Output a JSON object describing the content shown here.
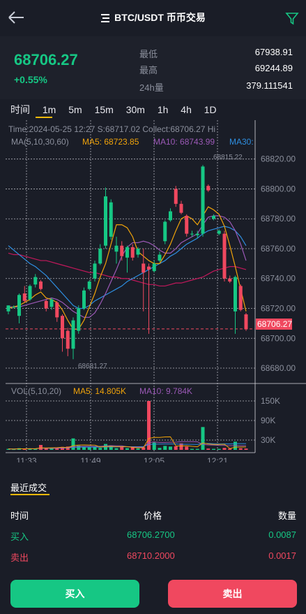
{
  "header": {
    "title": "BTC/USDT 币币交易",
    "back_icon": "arrow-left-icon",
    "menu_icon": "menu-icon",
    "filter_icon": "filter-icon"
  },
  "ticker": {
    "last": "68706.27",
    "change": "+0.55%",
    "low_label": "最低",
    "low": "67938.91",
    "high_label": "最高",
    "high": "69244.89",
    "vol_label": "24h量",
    "vol": "379.111541"
  },
  "intervals": [
    "时间",
    "1m",
    "5m",
    "15m",
    "30m",
    "1h",
    "4h",
    "1D"
  ],
  "chart_info": {
    "time_line": "Time:2024-05-25 12:27   S:68717.02   Collect:68706.27   Hi",
    "ma_label": "MA(5,10,30,60)",
    "ma5": "MA5: 68723.85",
    "ma10": "MA10: 68743.99",
    "ma30": "MA30:",
    "hi_marker": "68815.22",
    "lo_marker": "68681.27",
    "current_tag": "68706.27",
    "vol_label": "VOL(5,10,20)",
    "vol_ma5": "MA5: 14.805K",
    "vol_ma10": "MA10: 9.784K",
    "y_ticks": [
      "68820.00",
      "68800.00",
      "68780.00",
      "68760.00",
      "68740.00",
      "68720.00",
      "68700.00",
      "68680.00"
    ],
    "vol_ticks": [
      "150K",
      "90K",
      "30K"
    ],
    "x_ticks": [
      "11:33",
      "11:49",
      "12:05",
      "12:21"
    ]
  },
  "chart_data": {
    "type": "candlestick",
    "price_range": [
      68673,
      68825
    ],
    "volume_ticks": [
      150000,
      90000,
      30000
    ],
    "candles": [
      {
        "o": 68718,
        "c": 68722,
        "h": 68722,
        "l": 68716,
        "v": 3000
      },
      {
        "o": 68721,
        "c": 68721,
        "h": 68722,
        "l": 68720,
        "v": 2000
      },
      {
        "o": 68715,
        "c": 68729,
        "h": 68730,
        "l": 68710,
        "v": 5000
      },
      {
        "o": 68730,
        "c": 68725,
        "h": 68735,
        "l": 68724,
        "v": 3000
      },
      {
        "o": 68726,
        "c": 68735,
        "h": 68736,
        "l": 68725,
        "v": 4000
      },
      {
        "o": 68736,
        "c": 68741,
        "h": 68743,
        "l": 68734,
        "v": 3000
      },
      {
        "o": 68738,
        "c": 68733,
        "h": 68739,
        "l": 68732,
        "v": 15000
      },
      {
        "o": 68725,
        "c": 68720,
        "h": 68726,
        "l": 68718,
        "v": 5000
      },
      {
        "o": 68721,
        "c": 68726,
        "h": 68727,
        "l": 68719,
        "v": 4000
      },
      {
        "o": 68724,
        "c": 68714,
        "h": 68725,
        "l": 68711,
        "v": 6000
      },
      {
        "o": 68715,
        "c": 68700,
        "h": 68716,
        "l": 68691,
        "v": 9000
      },
      {
        "o": 68705,
        "c": 68693,
        "h": 68707,
        "l": 68688,
        "v": 10000
      },
      {
        "o": 68693,
        "c": 68712,
        "h": 68714,
        "l": 68686,
        "v": 35000
      },
      {
        "o": 68705,
        "c": 68720,
        "h": 68722,
        "l": 68703,
        "v": 13000
      },
      {
        "o": 68720,
        "c": 68732,
        "h": 68734,
        "l": 68719,
        "v": 8000
      },
      {
        "o": 68733,
        "c": 68738,
        "h": 68739,
        "l": 68732,
        "v": 8000
      },
      {
        "o": 68740,
        "c": 68750,
        "h": 68752,
        "l": 68738,
        "v": 9000
      },
      {
        "o": 68750,
        "c": 68760,
        "h": 68763,
        "l": 68749,
        "v": 6000
      },
      {
        "o": 68762,
        "c": 68795,
        "h": 68801,
        "l": 68760,
        "v": 18000
      },
      {
        "o": 68768,
        "c": 68791,
        "h": 68793,
        "l": 68766,
        "v": 12000
      },
      {
        "o": 68758,
        "c": 68762,
        "h": 68768,
        "l": 68750,
        "v": 5000
      },
      {
        "o": 68762,
        "c": 68755,
        "h": 68765,
        "l": 68752,
        "v": 9000
      },
      {
        "o": 68754,
        "c": 68761,
        "h": 68762,
        "l": 68744,
        "v": 5000
      },
      {
        "o": 68761,
        "c": 68754,
        "h": 68763,
        "l": 68752,
        "v": 8000
      },
      {
        "o": 68756,
        "c": 68760,
        "h": 68761,
        "l": 68754,
        "v": 4000
      },
      {
        "o": 68750,
        "c": 68744,
        "h": 68760,
        "l": 68718,
        "v": 8000
      },
      {
        "o": 68748,
        "c": 68746,
        "h": 68750,
        "l": 68703,
        "v": 150000
      },
      {
        "o": 68745,
        "c": 68750,
        "h": 68752,
        "l": 68744,
        "v": 22000
      },
      {
        "o": 68752,
        "c": 68756,
        "h": 68758,
        "l": 68751,
        "v": 6000
      },
      {
        "o": 68765,
        "c": 68778,
        "h": 68779,
        "l": 68763,
        "v": 12000
      },
      {
        "o": 68779,
        "c": 68785,
        "h": 68787,
        "l": 68778,
        "v": 10000
      },
      {
        "o": 68800,
        "c": 68790,
        "h": 68802,
        "l": 68788,
        "v": 11000
      },
      {
        "o": 68790,
        "c": 68784,
        "h": 68792,
        "l": 68783,
        "v": 20000
      },
      {
        "o": 68782,
        "c": 68770,
        "h": 68783,
        "l": 68768,
        "v": 10000
      },
      {
        "o": 68770,
        "c": 68770,
        "h": 68772,
        "l": 68768,
        "v": 3000
      },
      {
        "o": 68769,
        "c": 68770,
        "h": 68772,
        "l": 68767,
        "v": 3000
      },
      {
        "o": 68770,
        "c": 68815,
        "h": 68816,
        "l": 68768,
        "v": 70000
      },
      {
        "o": 68802,
        "c": 68799,
        "h": 68803,
        "l": 68798,
        "v": 4000
      },
      {
        "o": 68780,
        "c": 68782,
        "h": 68783,
        "l": 68779,
        "v": 3000
      },
      {
        "o": 68770,
        "c": 68772,
        "h": 68773,
        "l": 68769,
        "v": 3000
      },
      {
        "o": 68770,
        "c": 68740,
        "h": 68772,
        "l": 68738,
        "v": 6000
      },
      {
        "o": 68740,
        "c": 68738,
        "h": 68742,
        "l": 68737,
        "v": 4000
      },
      {
        "o": 68718,
        "c": 68741,
        "h": 68742,
        "l": 68703,
        "v": 25000
      },
      {
        "o": 68735,
        "c": 68719,
        "h": 68736,
        "l": 68718,
        "v": 5000
      },
      {
        "o": 68716,
        "c": 68706,
        "h": 68717,
        "l": 68705,
        "v": 4000
      }
    ],
    "ma5": [
      68720,
      68721,
      68722,
      68724,
      68726,
      68729,
      68731,
      68727,
      68726,
      68724,
      68719,
      68712,
      68706,
      68706,
      68712,
      68721,
      68730,
      68741,
      68750,
      68763,
      68776,
      68776,
      68774,
      68768,
      68758,
      68755,
      68752,
      68750,
      68750,
      68756,
      68763,
      68772,
      68780,
      68782,
      68780,
      68776,
      68782,
      68788,
      68786,
      68783,
      68775,
      68762,
      68748,
      68733,
      68718
    ],
    "ma10": [
      68721,
      68721,
      68721,
      68722,
      68723,
      68724,
      68725,
      68726,
      68727,
      68726,
      68724,
      68721,
      68718,
      68716,
      68714,
      68714,
      68717,
      68723,
      68730,
      68738,
      68746,
      68755,
      68761,
      68764,
      68764,
      68765,
      68764,
      68762,
      68759,
      68757,
      68757,
      68760,
      68764,
      68766,
      68768,
      68770,
      68776,
      68781,
      68782,
      68782,
      68781,
      68778,
      68772,
      68763,
      68752
    ],
    "ma30": [
      68762,
      68759,
      68756,
      68753,
      68750,
      68748,
      68745,
      68742,
      68738,
      68734,
      68730,
      68726,
      68722,
      68720,
      68720,
      68722,
      68725,
      68727,
      68729,
      68731,
      68733,
      68735,
      68738,
      68740,
      68742,
      68744,
      68746,
      68748,
      68750,
      68752,
      68755,
      68757,
      68760,
      68763,
      68765,
      68767,
      68770,
      68772,
      68773,
      68774,
      68775,
      68774,
      68772,
      68768,
      68762
    ],
    "ma60": [
      68757,
      68756,
      68756,
      68755,
      68754,
      68753,
      68752,
      68752,
      68751,
      68750,
      68749,
      68748,
      68747,
      68746,
      68745,
      68744,
      68744,
      68743,
      68742,
      68741,
      68741,
      68740,
      68740,
      68739,
      68738,
      68737,
      68736,
      68736,
      68735,
      68735,
      68736,
      68737,
      68737,
      68738,
      68739,
      68740,
      68741,
      68743,
      68745,
      68746,
      68747,
      68748,
      68748,
      68747,
      68746
    ]
  },
  "trades": {
    "title": "最近成交",
    "headers": [
      "时间",
      "价格",
      "数量"
    ],
    "rows": [
      {
        "side": "买入",
        "price": "68706.2700",
        "qty": "0.0087",
        "color": "#16c784"
      },
      {
        "side": "卖出",
        "price": "68710.2000",
        "qty": "0.0017",
        "color": "#f0485f"
      }
    ]
  },
  "buttons": {
    "buy": "买入",
    "sell": "卖出"
  },
  "colors": {
    "up": "#16c784",
    "down": "#f0485f",
    "ma5": "#f0a30a",
    "ma10": "#9b59b6",
    "ma30": "#2e8ee0",
    "ma60": "#c2185b",
    "accent": "#f0b90b"
  }
}
